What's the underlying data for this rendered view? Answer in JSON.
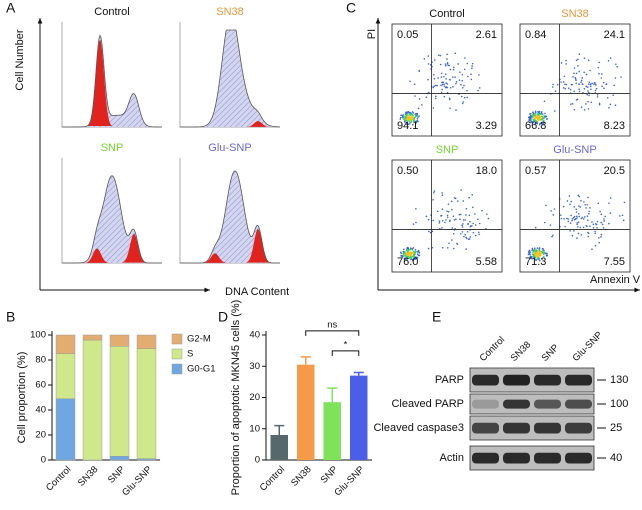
{
  "panel_labels": [
    "A",
    "B",
    "C",
    "D",
    "E"
  ],
  "cell_cycle": {
    "y_label": "Cell Number",
    "x_label": "DNA Content",
    "plots": [
      {
        "title": "Control",
        "color": "#111111"
      },
      {
        "title": "SN38",
        "color": "#e8963a"
      },
      {
        "title": "SNP",
        "color": "#72d92a"
      },
      {
        "title": "Glu-SNP",
        "color": "#6868d8"
      }
    ]
  },
  "apoptosis": {
    "y_label": "PI",
    "x_label": "Annexin V",
    "plots": [
      {
        "title": "Control",
        "color": "#111111",
        "quadrants": [
          "0.05",
          "2.61",
          "94.1",
          "3.29"
        ]
      },
      {
        "title": "SN38",
        "color": "#e8963a",
        "quadrants": [
          "0.84",
          "24.1",
          "66.8",
          "8.23"
        ]
      },
      {
        "title": "SNP",
        "color": "#72d92a",
        "quadrants": [
          "0.50",
          "18.0",
          "76.0",
          "5.58"
        ]
      },
      {
        "title": "Glu-SNP",
        "color": "#6868d8",
        "quadrants": [
          "0.57",
          "20.5",
          "71.3",
          "7.55"
        ]
      }
    ]
  },
  "western": {
    "lanes": [
      "Control",
      "SN38",
      "SNP",
      "Glu-SNP"
    ],
    "rows": [
      {
        "label": "PARP",
        "marker": "130"
      },
      {
        "label": "Cleaved PARP",
        "marker": "100"
      },
      {
        "label": "Cleaved caspase3",
        "marker": "25"
      },
      {
        "label": "Actin",
        "marker": "40"
      }
    ]
  },
  "chart_data": [
    {
      "type": "stacked_bar",
      "y_label": "Cell proportion (%)",
      "categories": [
        "Control",
        "SN38",
        "SNP",
        "Glu-SNP"
      ],
      "series": [
        {
          "name": "G0-G1",
          "color": "#6fa8e0",
          "values": [
            49,
            0,
            3,
            1
          ]
        },
        {
          "name": "S",
          "color": "#cfe88a",
          "values": [
            36,
            96,
            88,
            88
          ]
        },
        {
          "name": "G2-M",
          "color": "#e3ad72",
          "values": [
            15,
            4,
            9,
            11
          ]
        }
      ],
      "ylim": [
        0,
        100
      ],
      "yticks": [
        0,
        20,
        40,
        60,
        80,
        100
      ]
    },
    {
      "type": "bar",
      "y_label": "Proportion of apoptotic MKN45 cells (%)",
      "categories": [
        "Control",
        "SN38",
        "SNP",
        "Glu-SNP"
      ],
      "values": [
        8,
        30.5,
        18.5,
        27
      ],
      "errors": [
        3,
        2.5,
        4.5,
        1
      ],
      "colors": [
        "#56686c",
        "#f59a48",
        "#7ee35a",
        "#4a5ee8"
      ],
      "ylim": [
        0,
        40
      ],
      "yticks": [
        0,
        10,
        20,
        30,
        40
      ],
      "annotations": [
        "ns",
        "*"
      ]
    }
  ]
}
